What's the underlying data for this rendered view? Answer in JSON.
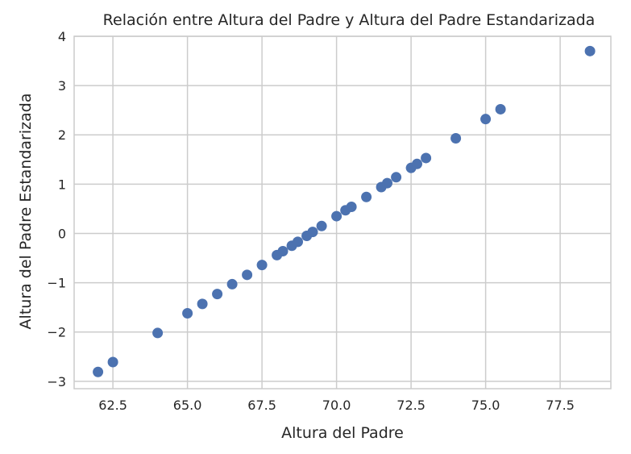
{
  "chart_data": {
    "type": "scatter",
    "title": "Relación entre Altura del Padre y Altura del Padre Estandarizada",
    "xlabel": "Altura del Padre",
    "ylabel": "Altura del Padre Estandarizada",
    "xlim": [
      61.2,
      79.2
    ],
    "ylim": [
      -3.15,
      4.0
    ],
    "xticks": [
      62.5,
      65.0,
      67.5,
      70.0,
      72.5,
      75.0,
      77.5
    ],
    "xtick_labels": [
      "62.5",
      "65.0",
      "67.5",
      "70.0",
      "72.5",
      "75.0",
      "77.5"
    ],
    "yticks": [
      -3,
      -2,
      -1,
      0,
      1,
      2,
      3,
      4
    ],
    "ytick_labels": [
      "−3",
      "−2",
      "−1",
      "0",
      "1",
      "2",
      "3",
      "4"
    ],
    "grid": true,
    "marker_color": "#4c72b0",
    "points": [
      {
        "x": 62.0,
        "y": -2.81
      },
      {
        "x": 62.5,
        "y": -2.61
      },
      {
        "x": 64.0,
        "y": -2.02
      },
      {
        "x": 65.0,
        "y": -1.62
      },
      {
        "x": 65.5,
        "y": -1.43
      },
      {
        "x": 66.0,
        "y": -1.23
      },
      {
        "x": 66.5,
        "y": -1.03
      },
      {
        "x": 67.0,
        "y": -0.84
      },
      {
        "x": 67.5,
        "y": -0.64
      },
      {
        "x": 68.0,
        "y": -0.44
      },
      {
        "x": 68.2,
        "y": -0.36
      },
      {
        "x": 68.5,
        "y": -0.25
      },
      {
        "x": 68.7,
        "y": -0.17
      },
      {
        "x": 69.0,
        "y": -0.05
      },
      {
        "x": 69.2,
        "y": 0.03
      },
      {
        "x": 69.5,
        "y": 0.15
      },
      {
        "x": 70.0,
        "y": 0.35
      },
      {
        "x": 70.3,
        "y": 0.47
      },
      {
        "x": 70.5,
        "y": 0.54
      },
      {
        "x": 71.0,
        "y": 0.74
      },
      {
        "x": 71.5,
        "y": 0.94
      },
      {
        "x": 71.7,
        "y": 1.02
      },
      {
        "x": 72.0,
        "y": 1.14
      },
      {
        "x": 72.5,
        "y": 1.33
      },
      {
        "x": 72.7,
        "y": 1.41
      },
      {
        "x": 73.0,
        "y": 1.53
      },
      {
        "x": 74.0,
        "y": 1.93
      },
      {
        "x": 75.0,
        "y": 2.32
      },
      {
        "x": 75.5,
        "y": 2.52
      },
      {
        "x": 78.5,
        "y": 3.7
      }
    ]
  }
}
